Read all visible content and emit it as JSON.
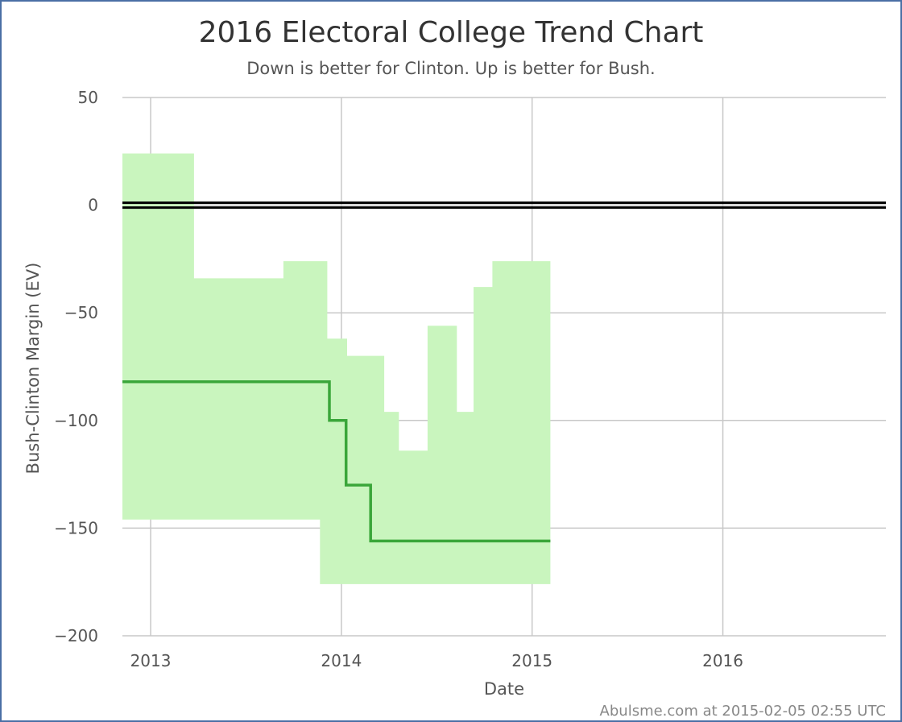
{
  "chart_data": {
    "type": "line",
    "title": "2016 Electoral College Trend Chart",
    "subtitle": "Down is better for Clinton. Up is better for Bush.",
    "xlabel": "Date",
    "ylabel": "Bush-Clinton Margin (EV)",
    "credit": "Abulsme.com at 2015-02-05 02:55 UTC",
    "xlim": [
      "2012-11-08",
      "2016-11-08"
    ],
    "ylim": [
      -200,
      50
    ],
    "x_ticks": [
      "2013",
      "2014",
      "2015",
      "2016"
    ],
    "x_tick_dates": [
      "2013-01-01",
      "2014-01-01",
      "2015-01-01",
      "2016-01-01"
    ],
    "y_ticks": [
      50,
      0,
      -50,
      -100,
      -150,
      -200
    ],
    "grid": true,
    "colors": {
      "expected_line": "#3aa63a",
      "range_band": "#c9f5be",
      "zero_line": "#000000",
      "grid": "#c8c8c8",
      "border": "#4a6fa5"
    },
    "series": [
      {
        "type": "step",
        "x": [
          "2012-11-08",
          "2013-12-09",
          "2014-01-10",
          "2014-02-26",
          "2015-02-05"
        ],
        "values": [
          -82,
          -100,
          -130,
          -156,
          -156
        ]
      },
      {
        "type": "range_band",
        "x": [
          "2012-11-08",
          "2013-03-25",
          "2013-09-12",
          "2013-11-21",
          "2013-12-05",
          "2014-01-12",
          "2014-03-24",
          "2014-04-21",
          "2014-06-15",
          "2014-08-10",
          "2014-09-11",
          "2014-10-17",
          "2015-02-05"
        ],
        "high": [
          24,
          -34,
          -26,
          -26,
          -62,
          -70,
          -96,
          -114,
          -56,
          -96,
          -38,
          -26,
          -26
        ],
        "low": [
          -146,
          -146,
          -146,
          -176,
          -176,
          -176,
          -176,
          -176,
          -176,
          -176,
          -176,
          -176,
          -176
        ]
      }
    ],
    "reference_lines": [
      0
    ]
  }
}
